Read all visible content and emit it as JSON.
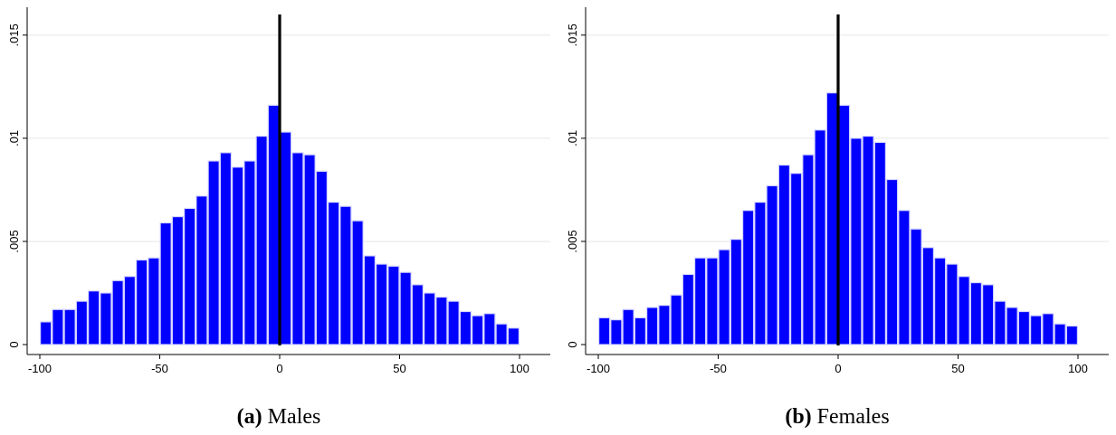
{
  "charts": [
    {
      "caption_label": "(a)",
      "caption_text": "Males",
      "chart_data": {
        "type": "bar",
        "subtype": "histogram",
        "bin_width": 5,
        "bin_starts": [
          -100,
          -95,
          -90,
          -85,
          -80,
          -75,
          -70,
          -65,
          -60,
          -55,
          -50,
          -45,
          -40,
          -35,
          -30,
          -25,
          -20,
          -15,
          -10,
          -5,
          0,
          5,
          10,
          15,
          20,
          25,
          30,
          35,
          40,
          45,
          50,
          55,
          60,
          65,
          70,
          75,
          80,
          85,
          90,
          95
        ],
        "values": [
          0.0011,
          0.0017,
          0.0017,
          0.0021,
          0.0026,
          0.0025,
          0.0031,
          0.0033,
          0.0041,
          0.0042,
          0.0059,
          0.0062,
          0.0066,
          0.0072,
          0.0089,
          0.0093,
          0.0086,
          0.0089,
          0.0101,
          0.0116,
          0.0103,
          0.0093,
          0.0092,
          0.0084,
          0.0069,
          0.0067,
          0.006,
          0.0043,
          0.0039,
          0.0038,
          0.0035,
          0.0029,
          0.0025,
          0.0023,
          0.0021,
          0.0016,
          0.0014,
          0.0015,
          0.001,
          0.0008
        ],
        "xlim": [
          -100,
          100
        ],
        "ylim": [
          0,
          0.016
        ],
        "x_ticks": [
          "-100",
          "-50",
          "0",
          "50",
          "100"
        ],
        "x_tick_values": [
          -100,
          -50,
          0,
          50,
          100
        ],
        "y_ticks": [
          "0",
          ".005",
          ".01",
          ".015"
        ],
        "y_tick_values": [
          0,
          0.005,
          0.01,
          0.015
        ],
        "vertical_line_x": 0,
        "grid": "horizontal",
        "bar_color": "#0000ff",
        "line_color": "#000000"
      }
    },
    {
      "caption_label": "(b)",
      "caption_text": "Females",
      "chart_data": {
        "type": "bar",
        "subtype": "histogram",
        "bin_width": 5,
        "bin_starts": [
          -100,
          -95,
          -90,
          -85,
          -80,
          -75,
          -70,
          -65,
          -60,
          -55,
          -50,
          -45,
          -40,
          -35,
          -30,
          -25,
          -20,
          -15,
          -10,
          -5,
          0,
          5,
          10,
          15,
          20,
          25,
          30,
          35,
          40,
          45,
          50,
          55,
          60,
          65,
          70,
          75,
          80,
          85,
          90,
          95
        ],
        "values": [
          0.0013,
          0.0012,
          0.0017,
          0.0013,
          0.0018,
          0.0019,
          0.0024,
          0.0034,
          0.0042,
          0.0042,
          0.0046,
          0.0051,
          0.0065,
          0.0069,
          0.0077,
          0.0087,
          0.0083,
          0.0092,
          0.0104,
          0.0122,
          0.0116,
          0.01,
          0.0101,
          0.0098,
          0.008,
          0.0065,
          0.0056,
          0.0047,
          0.0042,
          0.0039,
          0.0033,
          0.003,
          0.0029,
          0.0021,
          0.0018,
          0.0016,
          0.0014,
          0.0015,
          0.001,
          0.0009
        ],
        "xlim": [
          -100,
          100
        ],
        "ylim": [
          0,
          0.016
        ],
        "x_ticks": [
          "-100",
          "-50",
          "0",
          "50",
          "100"
        ],
        "x_tick_values": [
          -100,
          -50,
          0,
          50,
          100
        ],
        "y_ticks": [
          "0",
          ".005",
          ".01",
          ".015"
        ],
        "y_tick_values": [
          0,
          0.005,
          0.01,
          0.015
        ],
        "vertical_line_x": 0,
        "grid": "horizontal",
        "bar_color": "#0000ff",
        "line_color": "#000000"
      }
    }
  ]
}
